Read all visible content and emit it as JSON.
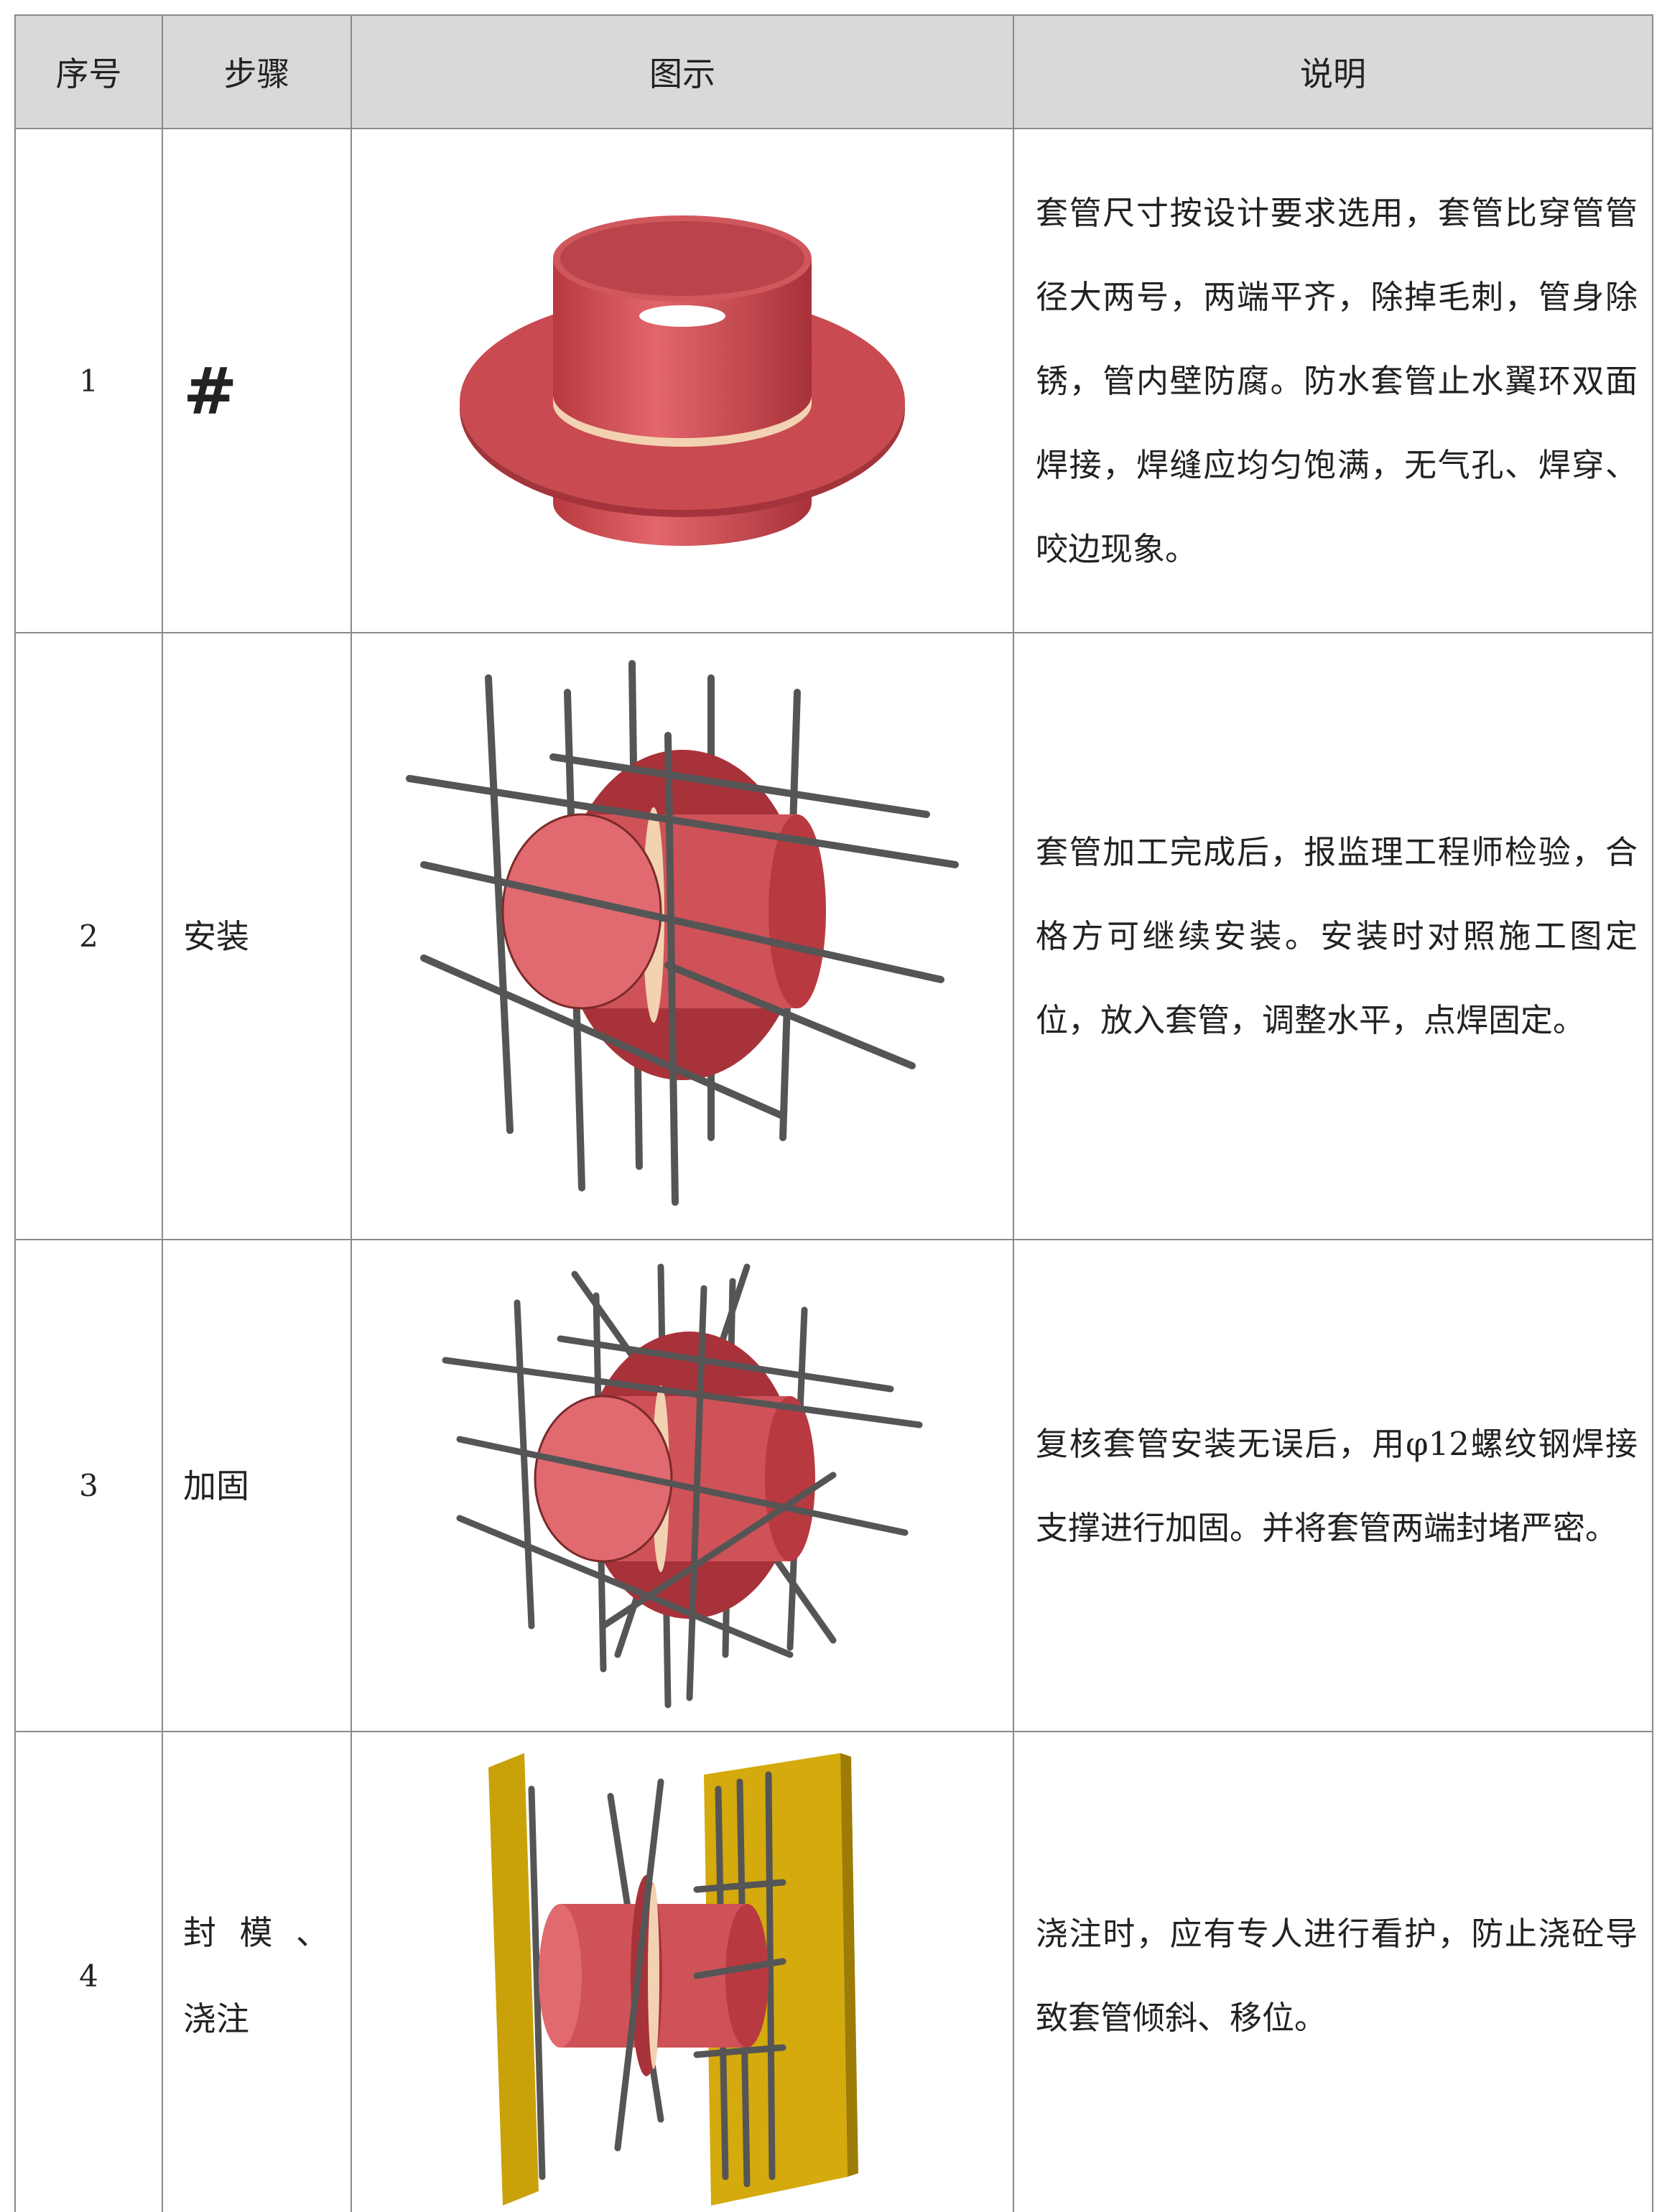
{
  "table": {
    "header": [
      "序号",
      "步骤",
      "图示",
      "说明"
    ],
    "rows": [
      {
        "no": "1",
        "step": "#",
        "desc": "套管尺寸按设计要求选用，套管比穿管管径大两号，两端平齐，除掉毛刺，管身除锈，管内壁防腐。防水套管止水翼环双面焊接，焊缝应均匀饱满，无气孔、焊穿、咬边现象。"
      },
      {
        "no": "2",
        "step": "安装",
        "desc": "套管加工完成后，报监理工程师检验，合格方可继续安装。安装时对照施工图定位，放入套管，调整水平，点焊固定。"
      },
      {
        "no": "3",
        "step": "加固",
        "desc": "复核套管安装无误后，用φ12螺纹钢焊接支撑进行加固。并将套管两端封堵严密。"
      },
      {
        "no": "4",
        "step": "封 模 、浇注",
        "desc": "浇注时，应有专人进行看护，防止浇砼导致套管倾斜、移位。"
      }
    ]
  }
}
